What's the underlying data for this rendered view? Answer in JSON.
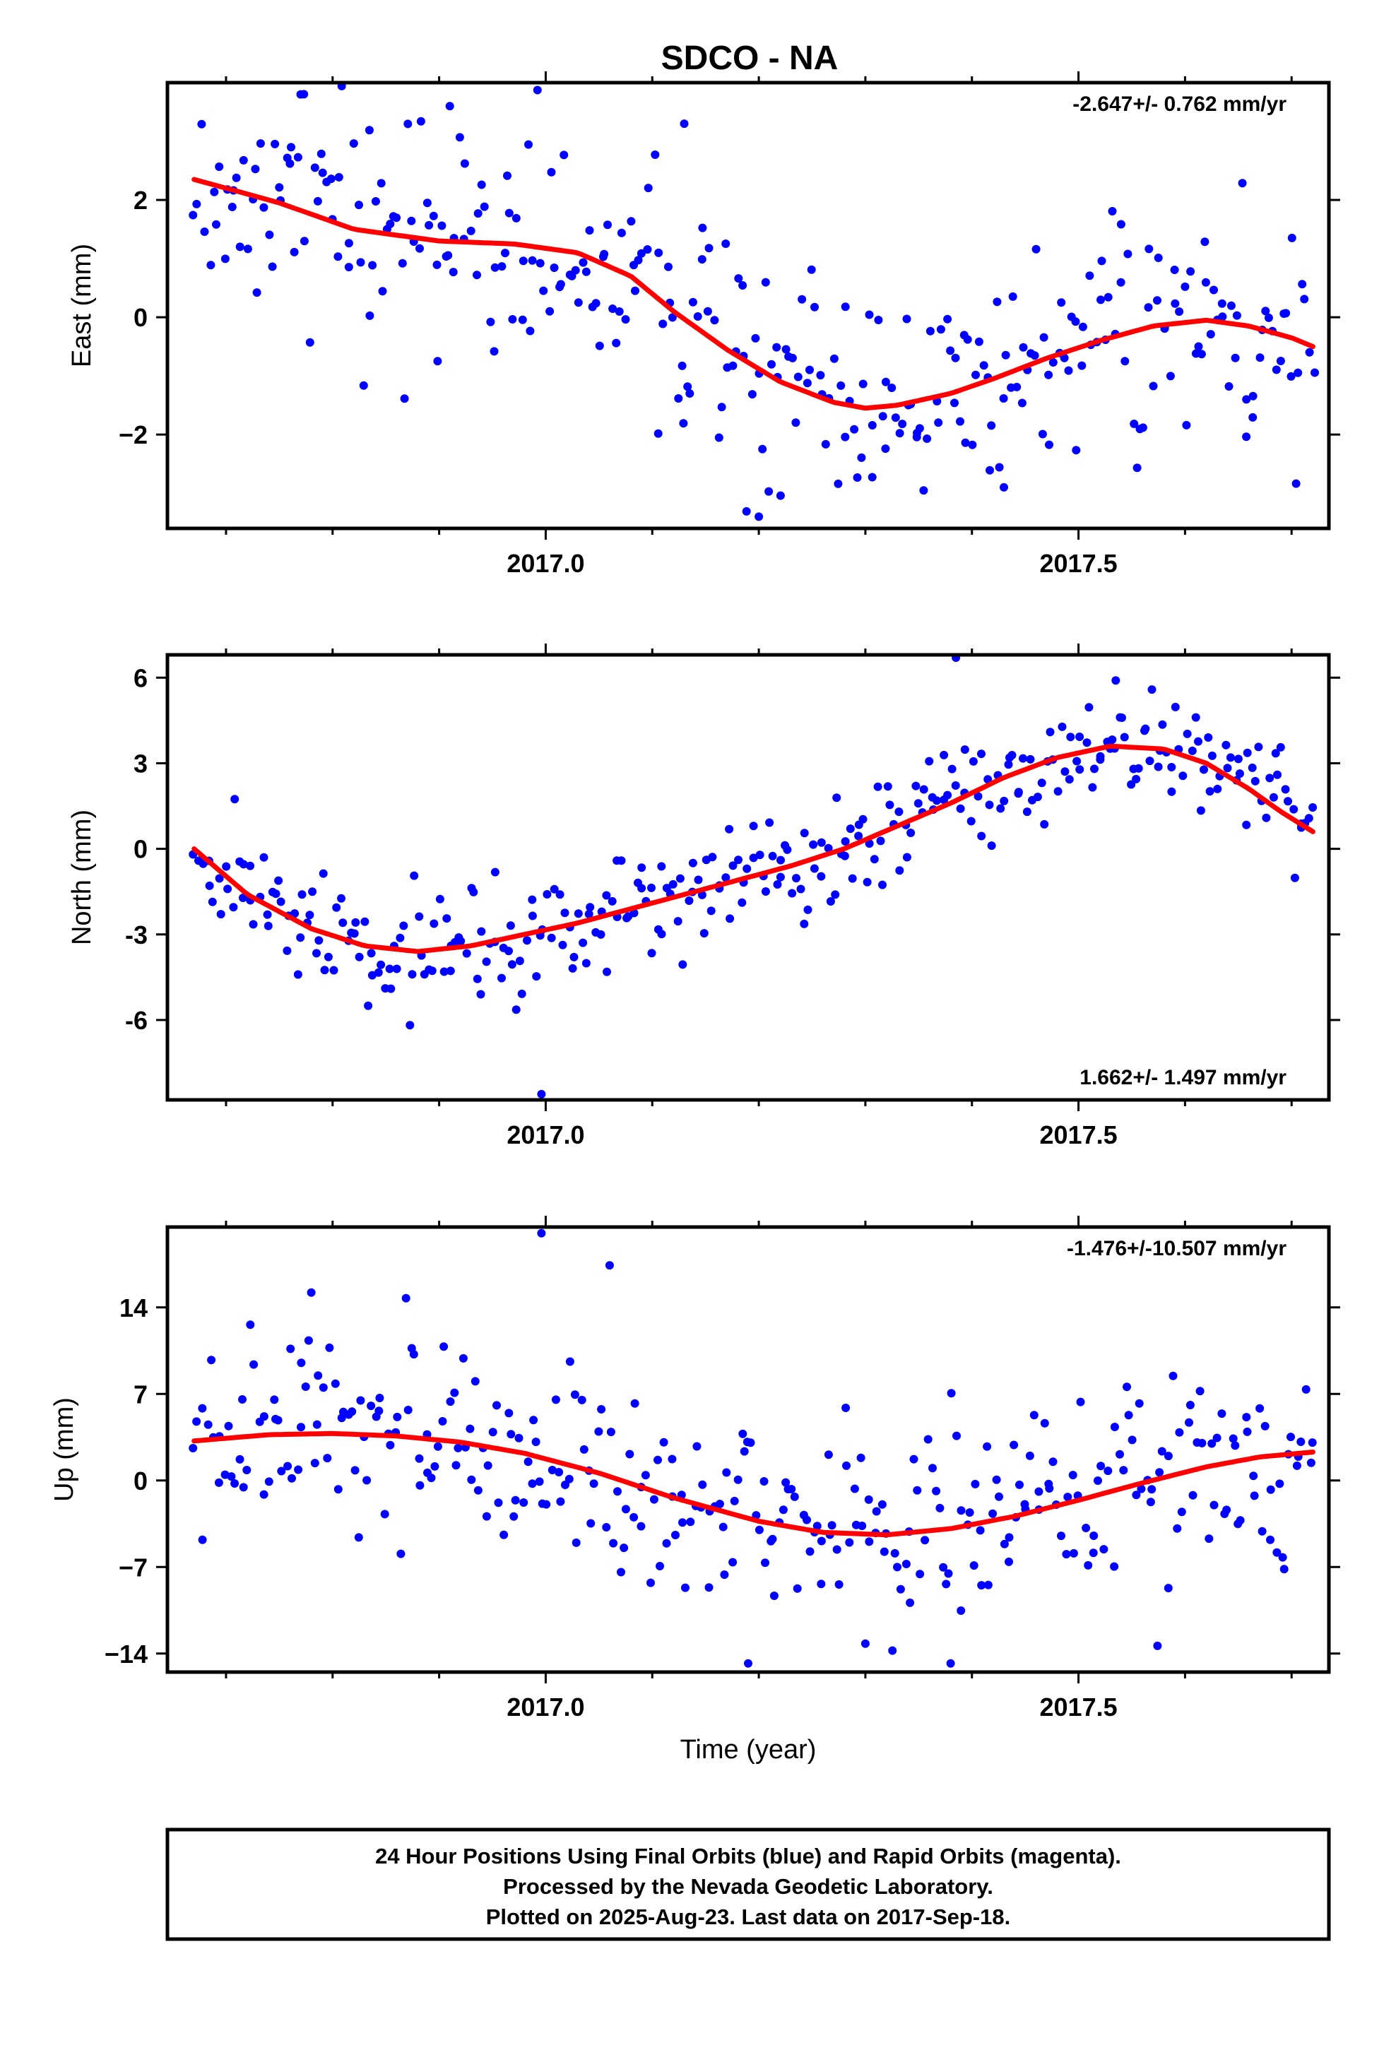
{
  "title": "SDCO - NA",
  "footer": {
    "line1": "24 Hour Positions Using Final Orbits (blue) and Rapid Orbits (magenta).",
    "line2": "Processed by the Nevada Geodetic Laboratory.",
    "line3": "Plotted on 2025-Aug-23. Last data on 2017-Sep-18."
  },
  "colors": {
    "points": "#0000ff",
    "fit": "#ff0000",
    "frame": "#000000"
  },
  "chart_data": [
    {
      "type": "scatter",
      "ylabel": "East (mm)",
      "rate_label": "-2.647+/- 0.762 mm/yr",
      "xlim": [
        2016.645,
        2017.735
      ],
      "ylim": [
        -3.6,
        4.0
      ],
      "x_ticks": [
        "2017.0",
        "2017.5"
      ],
      "y_ticks": [
        2,
        0,
        -2
      ],
      "y_tick_labels": [
        "2",
        "0",
        "−2"
      ],
      "series": [
        {
          "role": "fit",
          "x": [
            2016.67,
            2016.75,
            2016.82,
            2016.9,
            2016.97,
            2017.03,
            2017.08,
            2017.12,
            2017.17,
            2017.22,
            2017.27,
            2017.3,
            2017.33,
            2017.38,
            2017.42,
            2017.47,
            2017.52,
            2017.57,
            2017.62,
            2017.66,
            2017.7,
            2017.72
          ],
          "y": [
            2.35,
            1.95,
            1.5,
            1.3,
            1.25,
            1.1,
            0.7,
            0.1,
            -0.55,
            -1.1,
            -1.45,
            -1.55,
            -1.5,
            -1.3,
            -1.05,
            -0.7,
            -0.4,
            -0.15,
            -0.05,
            -0.15,
            -0.35,
            -0.5
          ]
        },
        {
          "role": "data",
          "seed": 17,
          "n": 330,
          "noise": 1.0,
          "outliers": [
            [
              2016.77,
              3.8
            ],
            [
              2016.91,
              3.6
            ],
            [
              2017.2,
              -3.4
            ],
            [
              2017.13,
              3.3
            ],
            [
              2017.43,
              -2.9
            ]
          ]
        }
      ]
    },
    {
      "type": "scatter",
      "ylabel": "North (mm)",
      "rate_label": "1.662+/- 1.497 mm/yr",
      "xlim": [
        2016.645,
        2017.735
      ],
      "ylim": [
        -8.8,
        6.8
      ],
      "x_ticks": [
        "2017.0",
        "2017.5"
      ],
      "y_ticks": [
        6,
        3,
        0,
        -3,
        -6
      ],
      "y_tick_labels": [
        "6",
        "3",
        "0",
        "-3",
        "-6"
      ],
      "series": [
        {
          "role": "fit",
          "x": [
            2016.67,
            2016.72,
            2016.78,
            2016.83,
            2016.88,
            2016.93,
            2016.98,
            2017.03,
            2017.08,
            2017.13,
            2017.18,
            2017.23,
            2017.28,
            2017.33,
            2017.38,
            2017.43,
            2017.48,
            2017.53,
            2017.58,
            2017.62,
            2017.66,
            2017.69,
            2017.72
          ],
          "y": [
            0.0,
            -1.6,
            -2.8,
            -3.4,
            -3.6,
            -3.4,
            -3.0,
            -2.6,
            -2.1,
            -1.6,
            -1.1,
            -0.6,
            0.0,
            0.8,
            1.6,
            2.5,
            3.2,
            3.6,
            3.5,
            3.0,
            2.1,
            1.3,
            0.6
          ]
        },
        {
          "role": "data",
          "seed": 29,
          "n": 330,
          "noise": 1.0,
          "outliers": [
            [
              2016.996,
              -8.6
            ],
            [
              2017.385,
              6.7
            ],
            [
              2017.535,
              5.9
            ]
          ]
        }
      ]
    },
    {
      "type": "scatter",
      "ylabel": "Up (mm)",
      "rate_label": "-1.476+/-10.507 mm/yr",
      "xlim": [
        2016.645,
        2017.735
      ],
      "ylim": [
        -15.5,
        20.5
      ],
      "x_ticks": [
        "2017.0",
        "2017.5"
      ],
      "y_ticks": [
        14,
        7,
        0,
        -7,
        -14
      ],
      "y_tick_labels": [
        "14",
        "7",
        "0",
        "−7",
        "−14"
      ],
      "xlabel": "Time (year)",
      "series": [
        {
          "role": "fit",
          "x": [
            2016.67,
            2016.74,
            2016.8,
            2016.86,
            2016.92,
            2016.98,
            2017.05,
            2017.12,
            2017.2,
            2017.26,
            2017.32,
            2017.38,
            2017.44,
            2017.5,
            2017.56,
            2017.62,
            2017.67,
            2017.72
          ],
          "y": [
            3.2,
            3.7,
            3.8,
            3.6,
            3.1,
            2.2,
            0.6,
            -1.4,
            -3.3,
            -4.2,
            -4.4,
            -3.9,
            -2.9,
            -1.6,
            -0.2,
            1.1,
            1.9,
            2.3
          ]
        },
        {
          "role": "data",
          "seed": 43,
          "n": 330,
          "noise": 4.2,
          "outliers": [
            [
              2016.996,
              20.0
            ],
            [
              2017.06,
              17.4
            ],
            [
              2016.78,
              15.2
            ],
            [
              2017.19,
              -14.8
            ],
            [
              2017.38,
              -14.8
            ],
            [
              2017.3,
              -13.2
            ]
          ]
        }
      ]
    }
  ]
}
